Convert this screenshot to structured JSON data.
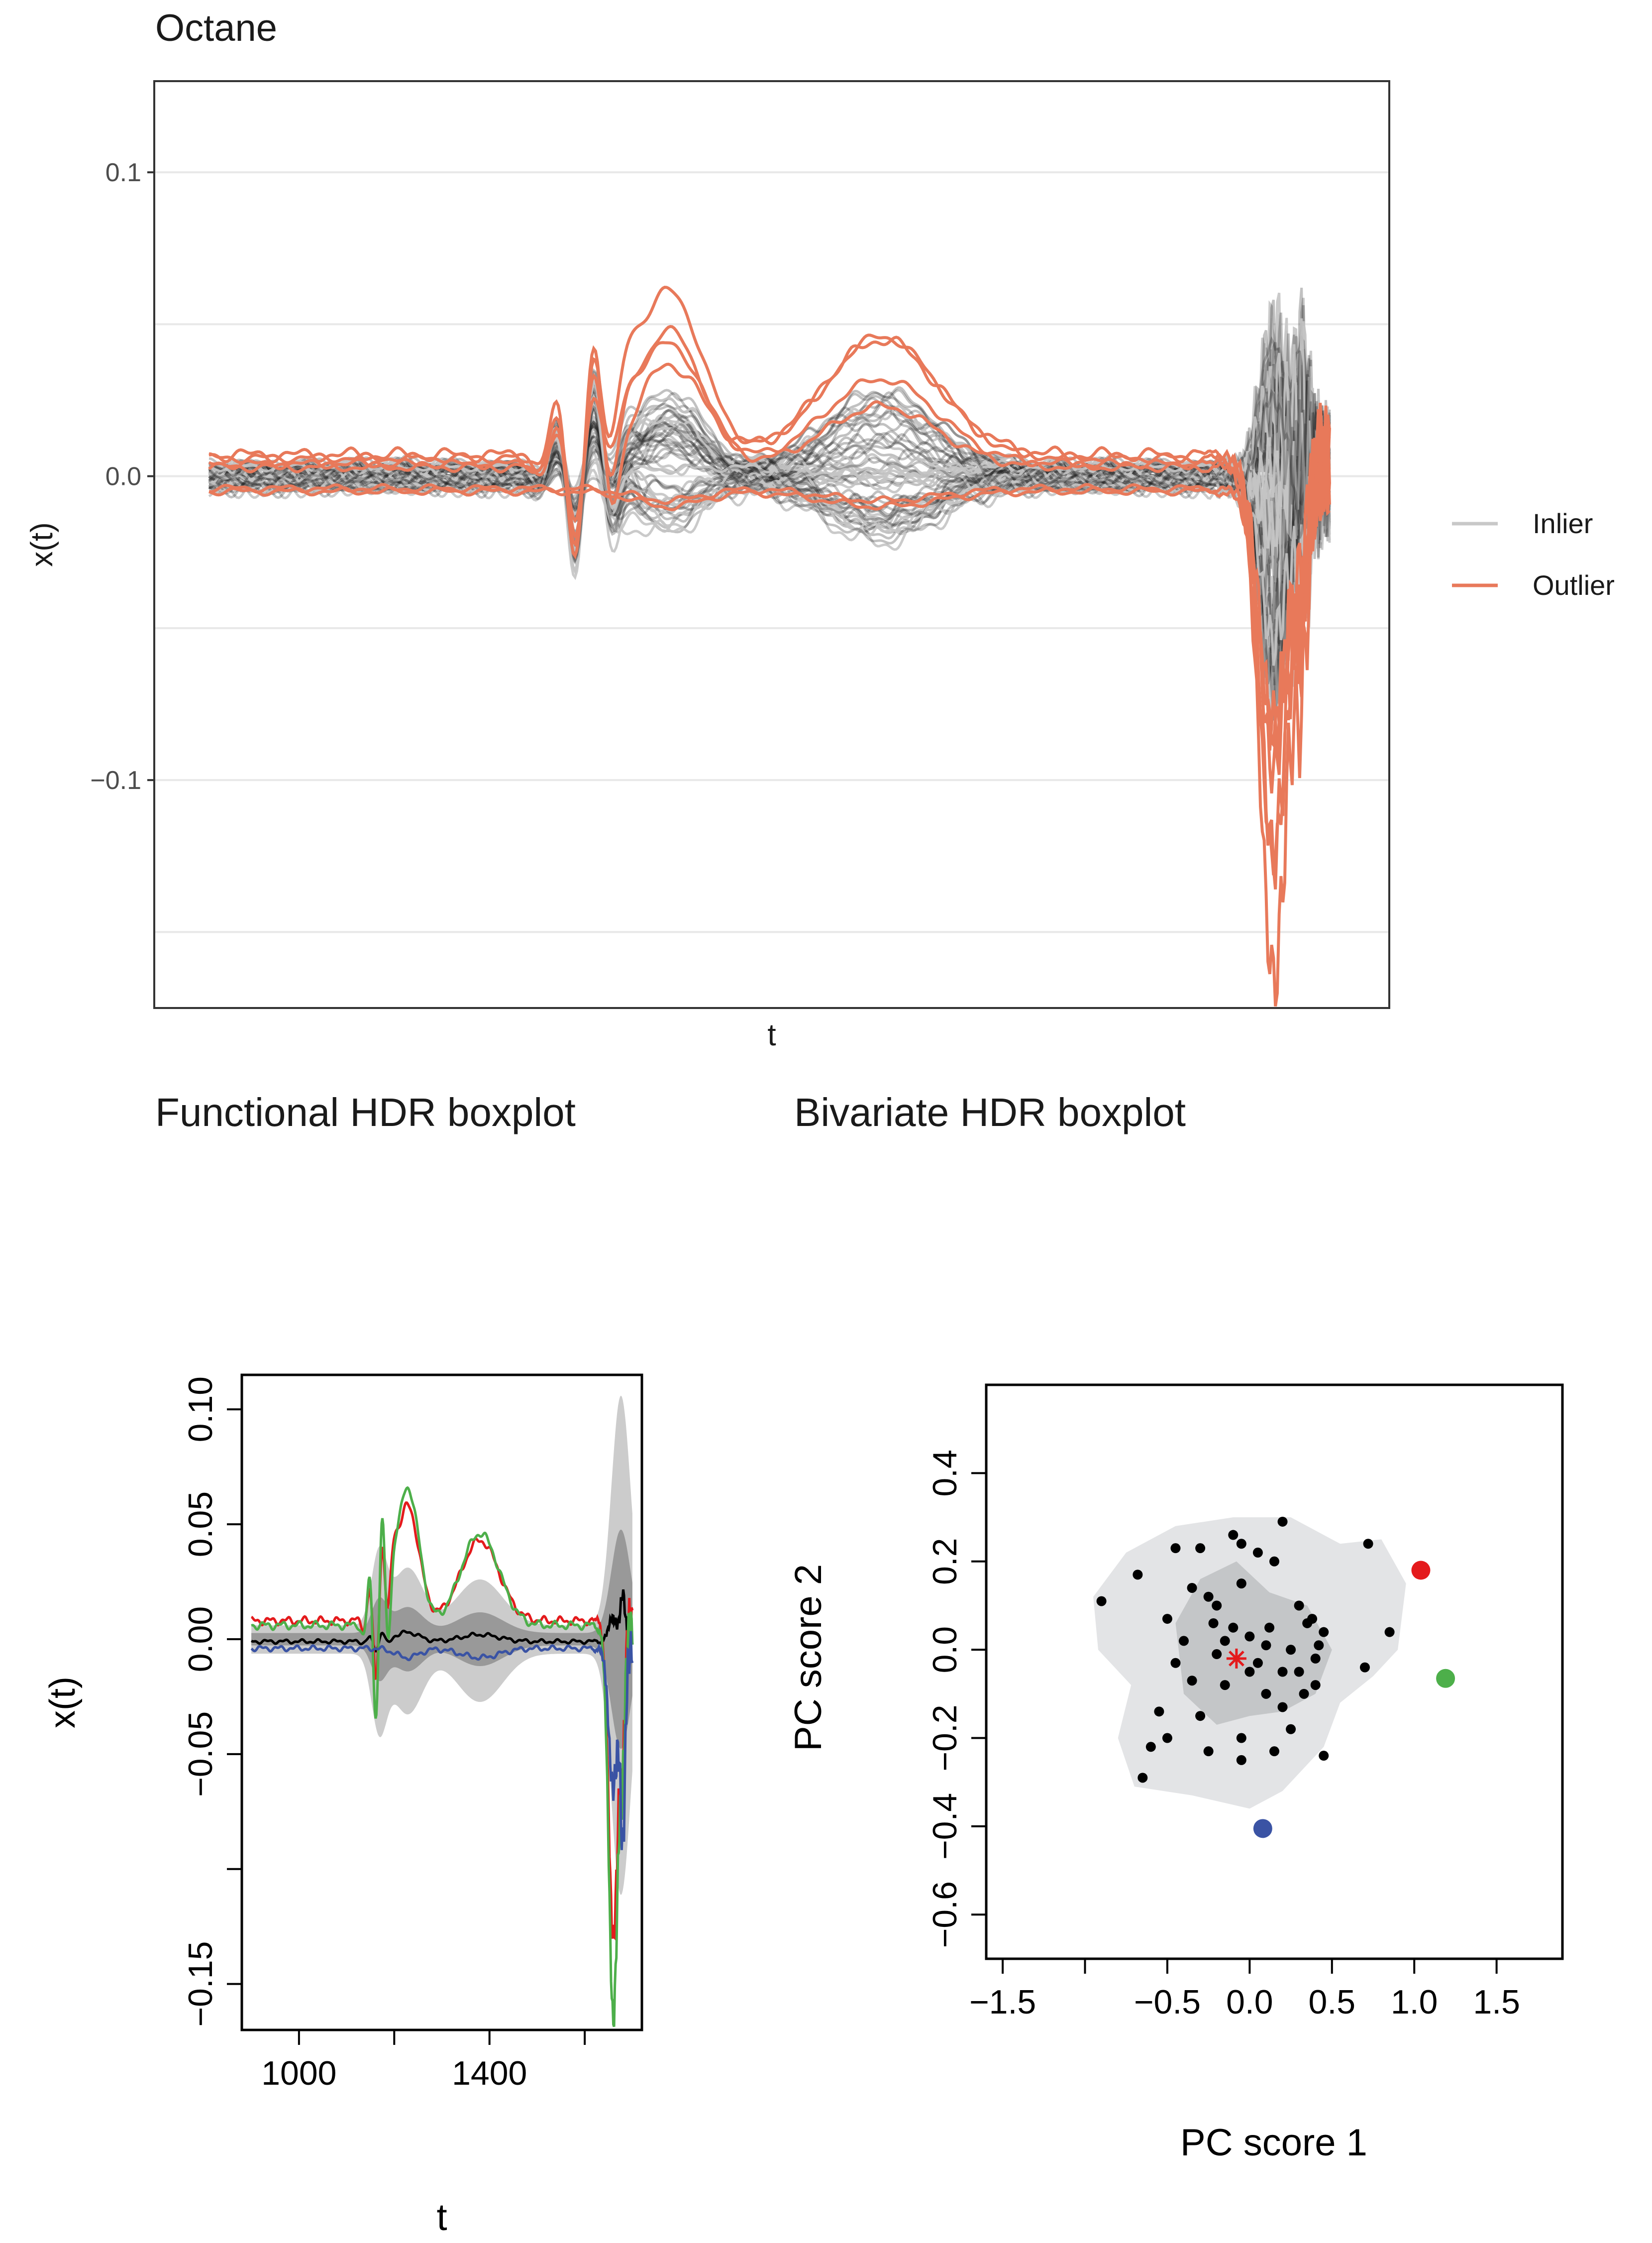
{
  "chart_data": [
    {
      "type": "line",
      "title": "Octane",
      "xlabel": "t",
      "ylabel": "x(t)",
      "ylim": [
        -0.175,
        0.13
      ],
      "y_ticks": [
        0.1,
        0.0,
        -0.1
      ],
      "y_tick_labels": [
        "0.1",
        "0.0",
        "-0.1"
      ],
      "grid": true,
      "legend": {
        "placement": "right",
        "entries": [
          {
            "label": "Inlier",
            "color": "#c8c8c8"
          },
          {
            "label": "Outlier",
            "color": "#e8795a"
          }
        ]
      },
      "series": [
        {
          "name": "Inlier",
          "note": "approx. 54 spectra, drawn semi-transparent black/grey"
        },
        {
          "name": "Outlier",
          "count": 6,
          "peaks": [
            0.067,
            0.047,
            -0.04,
            -0.175
          ]
        }
      ]
    },
    {
      "type": "line",
      "title": "Functional HDR boxplot",
      "xlabel": "t",
      "ylabel": "x(t)",
      "xlim": [
        880,
        1720
      ],
      "ylim": [
        -0.17,
        0.115
      ],
      "x_ticks": [
        1000,
        1200,
        1400,
        1600
      ],
      "x_tick_labels": [
        "1000",
        "",
        "1400",
        ""
      ],
      "y_ticks": [
        0.1,
        0.05,
        0.0,
        -0.05,
        -0.1,
        -0.15
      ],
      "y_tick_labels": [
        "0.10",
        "0.05",
        "0.00",
        "-0.05",
        "",
        "-0.15"
      ],
      "series": [
        {
          "name": "Mode",
          "color": "#000000"
        },
        {
          "name": "Outlier 1",
          "color": "#e41a1c"
        },
        {
          "name": "Outlier 2",
          "color": "#4daf4a"
        },
        {
          "name": "Outlier 3",
          "color": "#3a53a4"
        }
      ]
    },
    {
      "type": "scatter",
      "title": "Bivariate HDR boxplot",
      "xlabel": "PC score 1",
      "ylabel": "PC score 2",
      "xlim": [
        -1.6,
        1.9
      ],
      "ylim": [
        -0.7,
        0.6
      ],
      "x_ticks": [
        -1.5,
        -1.0,
        -0.5,
        0.0,
        0.5,
        1.0,
        1.5
      ],
      "x_tick_labels": [
        "-1.5",
        "",
        "-0.5",
        "0.0",
        "0.5",
        "1.0",
        "1.5"
      ],
      "y_ticks": [
        -0.6,
        -0.4,
        -0.2,
        0.0,
        0.2,
        0.4
      ],
      "y_tick_labels": [
        "-0.6",
        "-0.4",
        "-0.2",
        "0.0",
        "0.2",
        "0.4"
      ],
      "mode": {
        "x": -0.08,
        "y": -0.02,
        "color": "#e41a1c"
      },
      "outliers": [
        {
          "x": 1.04,
          "y": 0.18,
          "color": "#e41a1c"
        },
        {
          "x": 1.19,
          "y": -0.065,
          "color": "#4daf4a"
        },
        {
          "x": 0.08,
          "y": -0.405,
          "color": "#3a53a4"
        }
      ],
      "points": [
        [
          -0.9,
          0.11
        ],
        [
          -0.68,
          0.17
        ],
        [
          -0.45,
          0.23
        ],
        [
          -0.3,
          0.23
        ],
        [
          -0.1,
          0.26
        ],
        [
          0.2,
          0.29
        ],
        [
          0.72,
          0.24
        ],
        [
          -0.05,
          0.24
        ],
        [
          0.05,
          0.22
        ],
        [
          0.15,
          0.2
        ],
        [
          0.85,
          0.04
        ],
        [
          0.7,
          -0.04
        ],
        [
          -0.35,
          0.14
        ],
        [
          -0.25,
          0.12
        ],
        [
          -0.2,
          0.1
        ],
        [
          -0.05,
          0.15
        ],
        [
          0.3,
          0.1
        ],
        [
          0.35,
          0.06
        ],
        [
          -0.5,
          0.07
        ],
        [
          -0.4,
          0.02
        ],
        [
          -0.45,
          -0.03
        ],
        [
          -0.35,
          -0.07
        ],
        [
          -0.1,
          0.05
        ],
        [
          0.0,
          0.03
        ],
        [
          0.1,
          0.01
        ],
        [
          0.25,
          0.0
        ],
        [
          0.4,
          -0.02
        ],
        [
          0.42,
          0.01
        ],
        [
          0.45,
          0.04
        ],
        [
          0.38,
          0.07
        ],
        [
          -0.15,
          -0.08
        ],
        [
          0.0,
          -0.05
        ],
        [
          0.1,
          -0.1
        ],
        [
          0.2,
          -0.13
        ],
        [
          0.33,
          -0.1
        ],
        [
          0.4,
          -0.08
        ],
        [
          -0.05,
          -0.2
        ],
        [
          0.15,
          -0.23
        ],
        [
          0.45,
          -0.24
        ],
        [
          -0.6,
          -0.22
        ],
        [
          -0.5,
          -0.2
        ],
        [
          -0.3,
          -0.15
        ],
        [
          -0.65,
          -0.29
        ],
        [
          -0.55,
          -0.14
        ],
        [
          -0.2,
          -0.01
        ],
        [
          -0.15,
          0.02
        ],
        [
          0.05,
          -0.03
        ],
        [
          -0.05,
          -0.25
        ],
        [
          0.2,
          -0.05
        ],
        [
          0.3,
          -0.05
        ],
        [
          -0.25,
          -0.23
        ],
        [
          0.25,
          -0.18
        ],
        [
          0.12,
          0.05
        ],
        [
          -0.22,
          0.06
        ]
      ]
    }
  ]
}
